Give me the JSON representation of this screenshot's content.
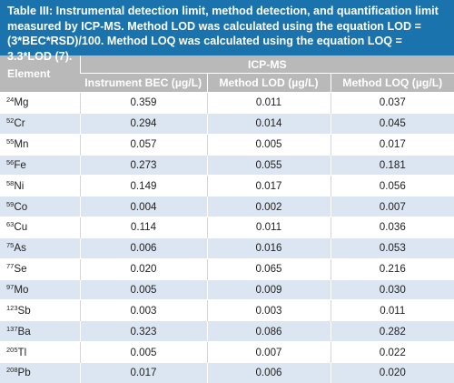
{
  "caption": {
    "label": "Table III",
    "text": ": Instrumental detection limit, method detection, and quantification limit measured by ICP-MS. Method LOD was calculated using the equation LOD = (3*BEC*RSD)/100. Method LOQ was calculated using the equation LOQ = 3.3*LOD (7)."
  },
  "header": {
    "element": "Element",
    "group": "ICP-MS",
    "columns": [
      "Instrument BEC (µg/L)",
      "Method LOD (µg/L)",
      "Method LOQ (µg/L)"
    ]
  },
  "rows": [
    {
      "mass": "24",
      "symbol": "Mg",
      "bec": "0.359",
      "lod": "0.011",
      "loq": "0.037"
    },
    {
      "mass": "52",
      "symbol": "Cr",
      "bec": "0.294",
      "lod": "0.014",
      "loq": "0.045"
    },
    {
      "mass": "55",
      "symbol": "Mn",
      "bec": "0.057",
      "lod": "0.005",
      "loq": "0.017"
    },
    {
      "mass": "56",
      "symbol": "Fe",
      "bec": "0.273",
      "lod": "0.055",
      "loq": "0.181"
    },
    {
      "mass": "58",
      "symbol": "Ni",
      "bec": "0.149",
      "lod": "0.017",
      "loq": "0.056"
    },
    {
      "mass": "59",
      "symbol": "Co",
      "bec": "0.004",
      "lod": "0.002",
      "loq": "0.007"
    },
    {
      "mass": "63",
      "symbol": "Cu",
      "bec": "0.114",
      "lod": "0.011",
      "loq": "0.036"
    },
    {
      "mass": "75",
      "symbol": "As",
      "bec": "0.006",
      "lod": "0.016",
      "loq": "0.053"
    },
    {
      "mass": "77",
      "symbol": "Se",
      "bec": "0.020",
      "lod": "0.065",
      "loq": "0.216"
    },
    {
      "mass": "97",
      "symbol": "Mo",
      "bec": "0.005",
      "lod": "0.009",
      "loq": "0.030"
    },
    {
      "mass": "123",
      "symbol": "Sb",
      "bec": "0.003",
      "lod": "0.003",
      "loq": "0.011"
    },
    {
      "mass": "137",
      "symbol": "Ba",
      "bec": "0.323",
      "lod": "0.086",
      "loq": "0.282"
    },
    {
      "mass": "205",
      "symbol": "Tl",
      "bec": "0.005",
      "lod": "0.007",
      "loq": "0.022"
    },
    {
      "mass": "208",
      "symbol": "Pb",
      "bec": "0.017",
      "lod": "0.006",
      "loq": "0.020"
    }
  ],
  "colors": {
    "caption_bg": "#1a73ad",
    "header_bg": "#b9b9b9",
    "stripe": "#dbe6f2"
  }
}
